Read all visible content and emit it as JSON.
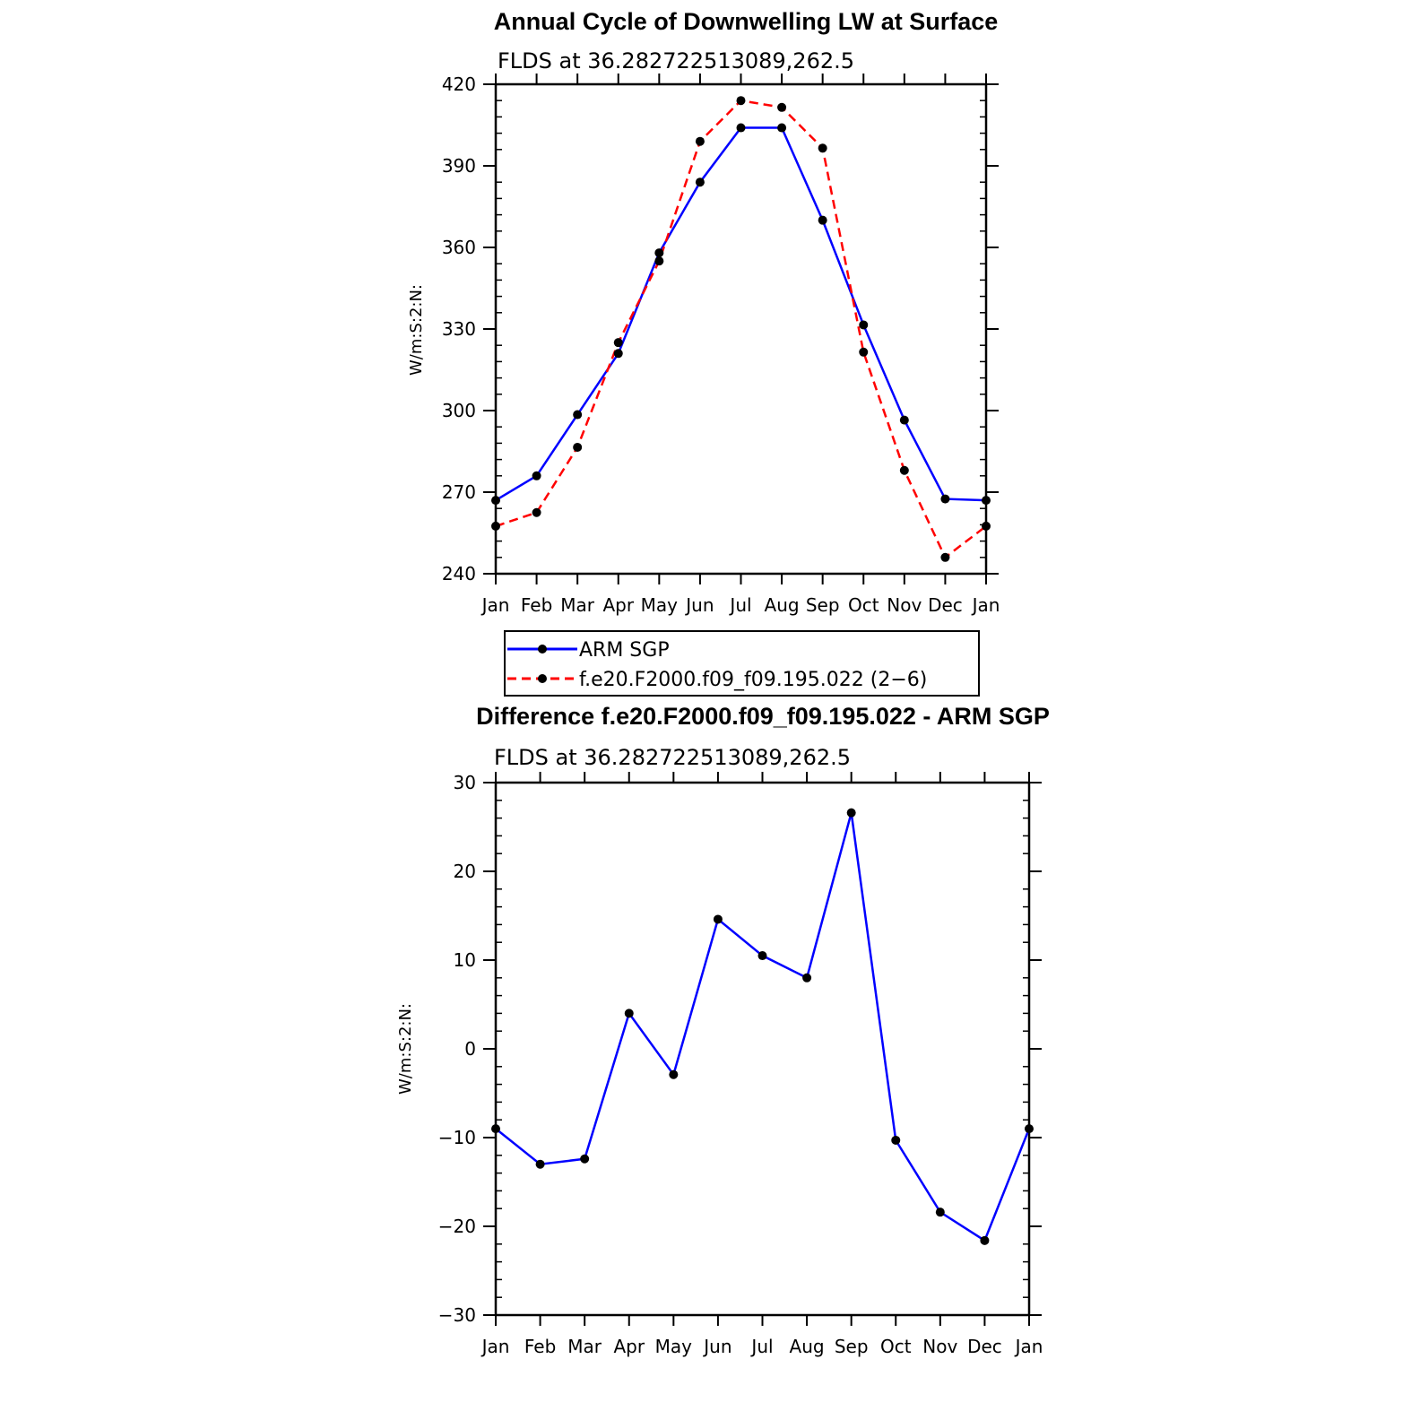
{
  "colors": {
    "series_a": "#0000ff",
    "series_b": "#ff0000",
    "marker": "#000000",
    "axis": "#000000"
  },
  "chart_data": [
    {
      "type": "line",
      "title": "Annual Cycle of Downwelling LW at Surface",
      "subtitle": "FLDS at 36.282722513089,262.5",
      "xlabel": "",
      "ylabel": "W/m:S:2:N:",
      "categories": [
        "Jan",
        "Feb",
        "Mar",
        "Apr",
        "May",
        "Jun",
        "Jul",
        "Aug",
        "Sep",
        "Oct",
        "Nov",
        "Dec",
        "Jan"
      ],
      "ylim": [
        240,
        420
      ],
      "yticks": [
        "240",
        "270",
        "300",
        "330",
        "360",
        "390",
        "420"
      ],
      "series": [
        {
          "name": "ARM SGP",
          "style": "solid",
          "values": [
            267,
            276,
            298.5,
            321,
            358,
            384,
            404,
            404,
            370,
            331.5,
            296.5,
            267.5,
            267
          ]
        },
        {
          "name": "f.e20.F2000.f09_f09.195.022 (2−6)",
          "style": "dashed",
          "values": [
            257.5,
            262.5,
            286.5,
            325,
            355,
            399,
            414,
            411.5,
            396.5,
            321.5,
            278,
            246,
            257.5
          ]
        }
      ],
      "legend": [
        "ARM SGP",
        "f.e20.F2000.f09_f09.195.022 (2−6)"
      ]
    },
    {
      "type": "line",
      "title": "Difference f.e20.F2000.f09_f09.195.022 - ARM SGP",
      "subtitle": "FLDS at 36.282722513089,262.5",
      "xlabel": "",
      "ylabel": "W/m:S:2:N:",
      "categories": [
        "Jan",
        "Feb",
        "Mar",
        "Apr",
        "May",
        "Jun",
        "Jul",
        "Aug",
        "Sep",
        "Oct",
        "Nov",
        "Dec",
        "Jan"
      ],
      "ylim": [
        -30,
        30
      ],
      "yticks": [
        "−30",
        "−20",
        "−10",
        "0",
        "10",
        "20",
        "30"
      ],
      "series": [
        {
          "name": "Difference",
          "style": "solid",
          "values": [
            -9,
            -13,
            -12.4,
            4,
            -2.9,
            14.6,
            10.5,
            8,
            26.6,
            -10.3,
            -18.4,
            -21.6,
            -9
          ]
        }
      ]
    }
  ]
}
